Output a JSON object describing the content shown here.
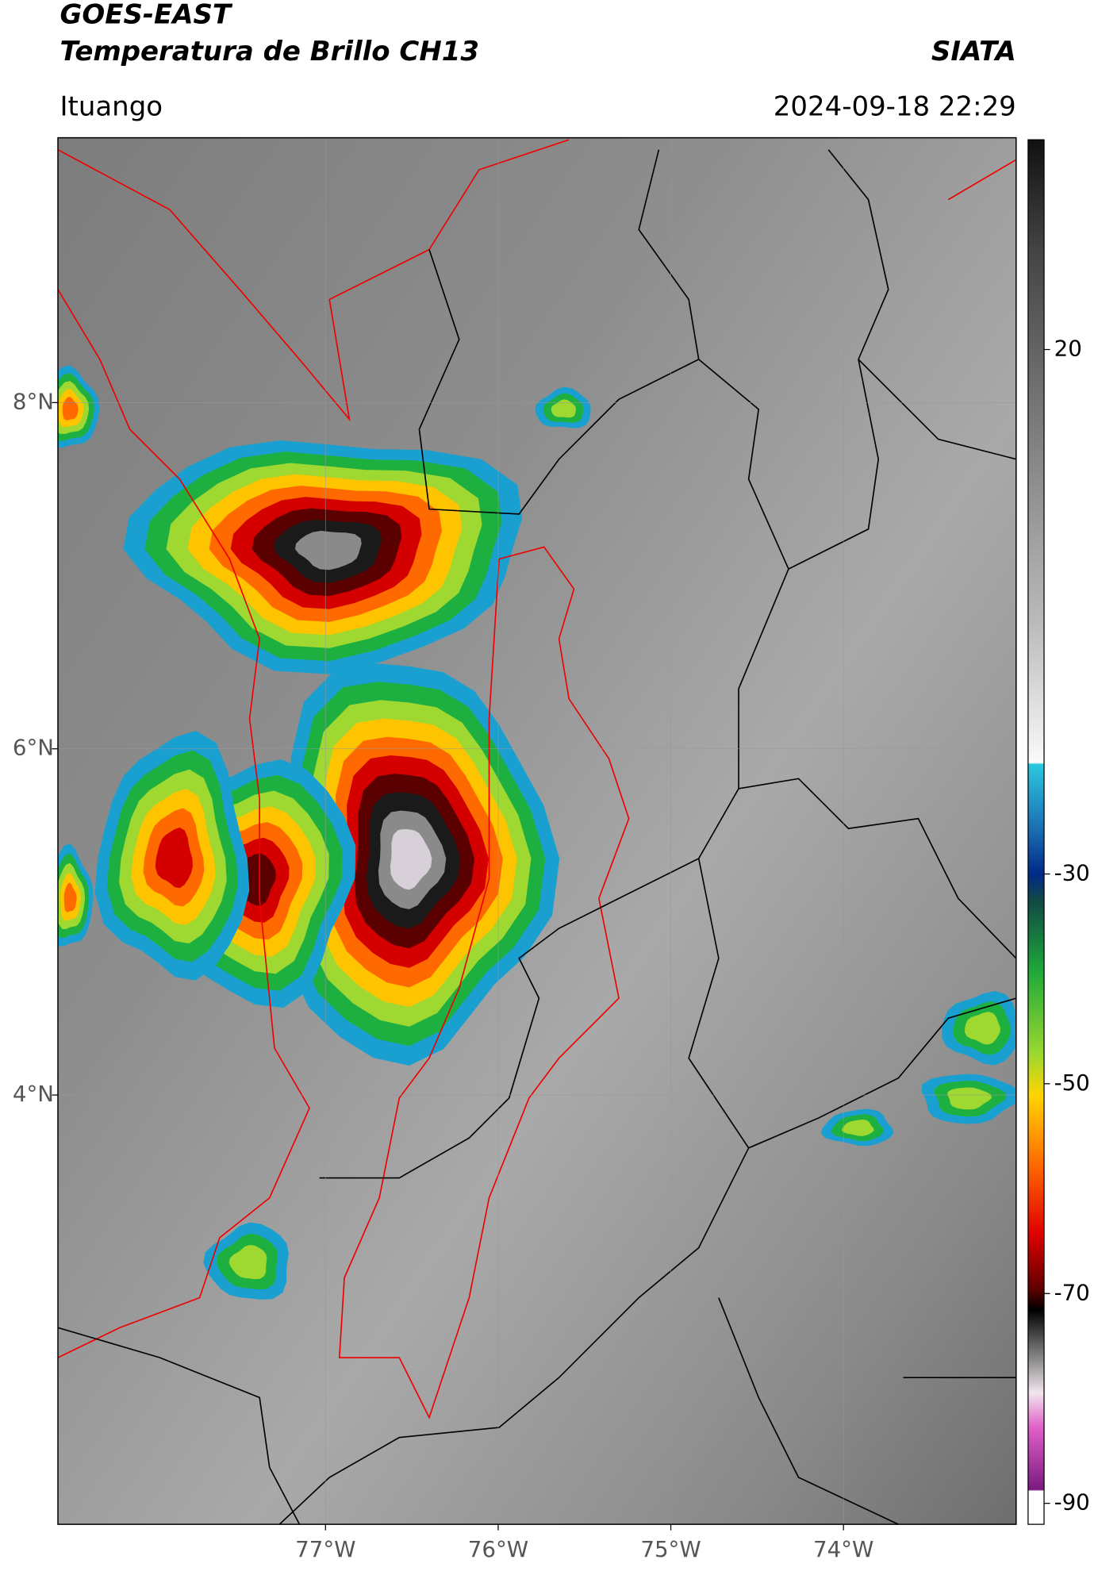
{
  "header": {
    "title": "GOES-EAST",
    "subtitle": "Temperatura de Brillo CH13",
    "agency": "SIATA",
    "location": "Ituango",
    "datetime": "2024-09-18 22:29"
  },
  "map": {
    "xlim": [
      -78.55,
      -73.0
    ],
    "ylim": [
      1.52,
      9.53
    ],
    "xticks": [
      {
        "value": -77,
        "label": "77°W"
      },
      {
        "value": -76,
        "label": "76°W"
      },
      {
        "value": -75,
        "label": "75°W"
      },
      {
        "value": -74,
        "label": "74°W"
      }
    ],
    "yticks": [
      {
        "value": 8,
        "label": "8°N"
      },
      {
        "value": 6,
        "label": "6°N"
      },
      {
        "value": 4,
        "label": "4°N"
      }
    ],
    "grid": true
  },
  "colorbar": {
    "lim": [
      -92,
      40
    ],
    "ticks": [
      20,
      -30,
      -50,
      -70,
      -90
    ]
  }
}
